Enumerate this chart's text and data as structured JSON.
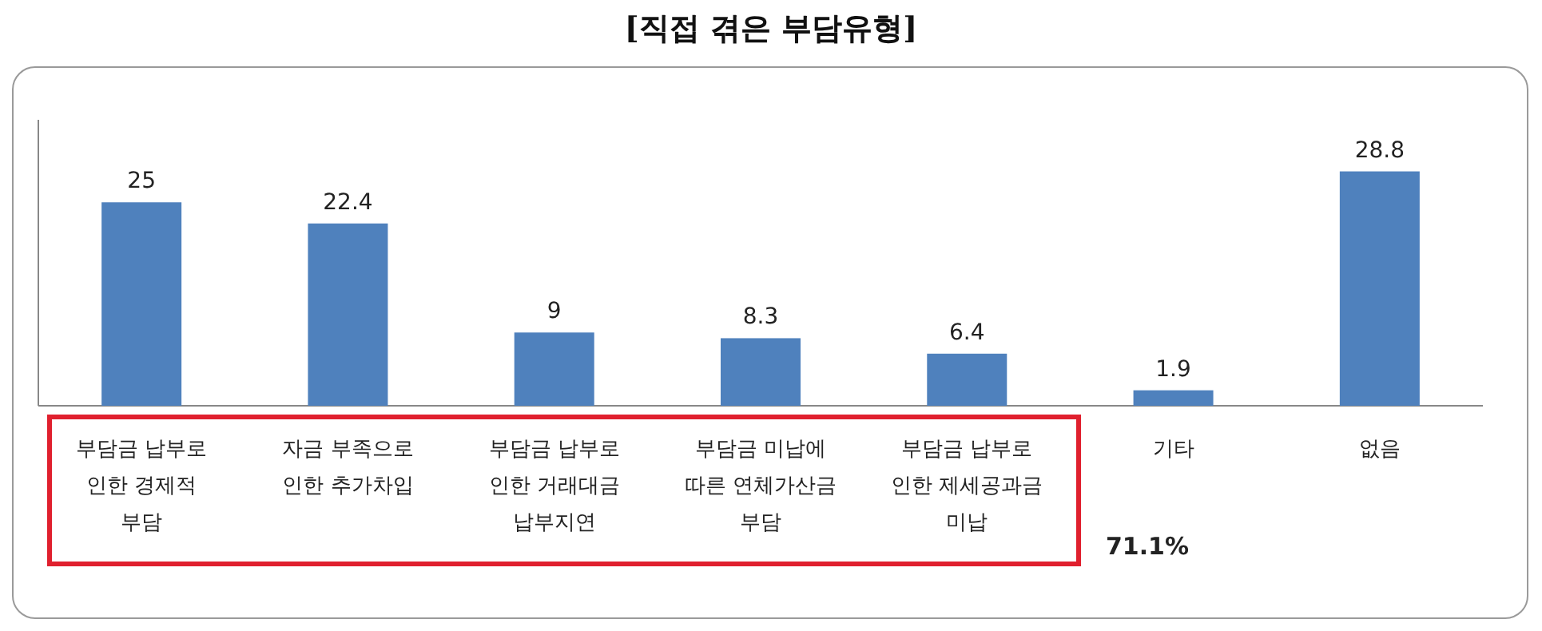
{
  "chart_data": {
    "type": "bar",
    "title": "[직접 겪은 부담유형]",
    "categories": [
      "부담금 납부로\n인한 경제적\n부담",
      "자금 부족으로\n인한 추가차입",
      "부담금 납부로\n인한 거래대금\n납부지연",
      "부담금 미납에\n따른 연체가산금\n부담",
      "부담금 납부로\n인한 제세공과금\n미납",
      "기타",
      "없음"
    ],
    "values": [
      25,
      22.4,
      9,
      8.3,
      6.4,
      1.9,
      28.8
    ],
    "color": "#4f81bd",
    "data_labels": true,
    "annotations": [
      "71.1%"
    ]
  }
}
